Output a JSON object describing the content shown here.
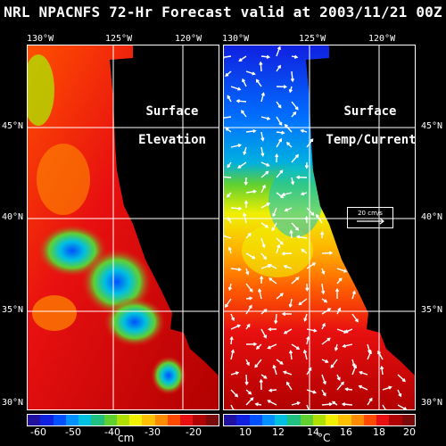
{
  "title": "NRL NPACNFS 72-Hr Forecast valid at 2003/11/21 00Z",
  "longitudes": [
    "130°W",
    "125°W",
    "120°W"
  ],
  "latitudes": [
    "45°N",
    "40°N",
    "35°N",
    "30°N"
  ],
  "left_panel": {
    "label_line1": "Surface",
    "label_line2": "Elevation",
    "colorbar_ticks": [
      "-60",
      "-50",
      "-40",
      "-30",
      "-20"
    ],
    "unit": "cm"
  },
  "right_panel": {
    "label_line1": "Surface",
    "label_line2": "Temp/Current",
    "colorbar_ticks": [
      "10",
      "12",
      "14",
      "16",
      "18",
      "20"
    ],
    "unit": "°C",
    "scale_label": "20 cm/s"
  },
  "colors": {
    "ramp": [
      "#7a0a0a",
      "#b00000",
      "#e81010",
      "#ff4a00",
      "#ff8c00",
      "#ffc000",
      "#f0f000",
      "#b0e000",
      "#60d030",
      "#20c080",
      "#00c0e0",
      "#0090ff",
      "#0050ff",
      "#1020e0",
      "#2010a0"
    ],
    "land": "#000000"
  }
}
